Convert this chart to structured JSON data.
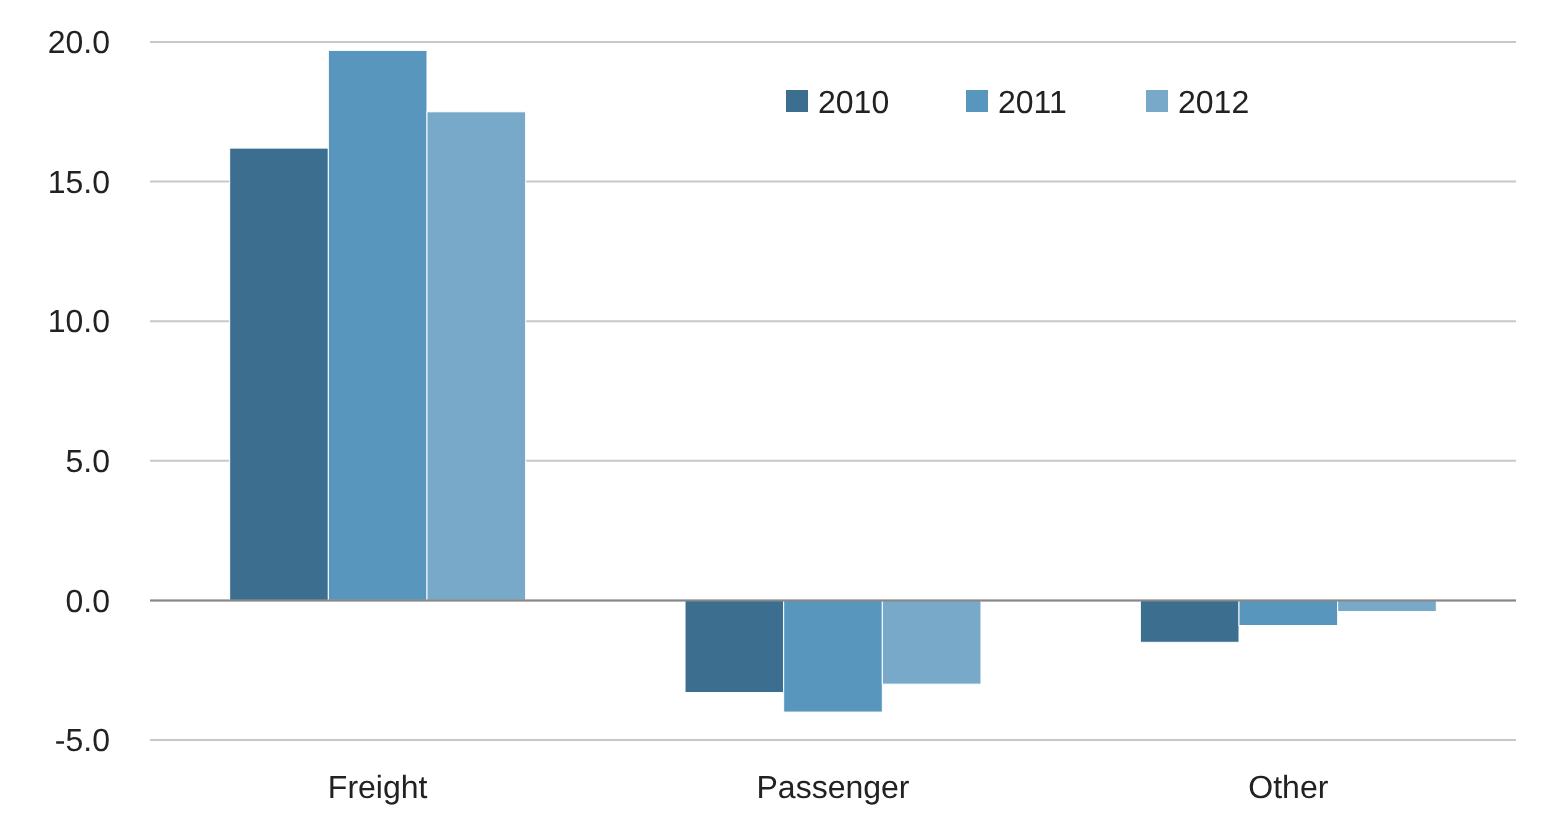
{
  "chart_data": {
    "type": "bar",
    "categories": [
      "Freight",
      "Passenger",
      "Other"
    ],
    "series": [
      {
        "name": "2010",
        "color": "#3b6e8f",
        "values": [
          16.2,
          -3.3,
          -1.5
        ]
      },
      {
        "name": "2011",
        "color": "#5996bd",
        "values": [
          19.7,
          -4.0,
          -0.9
        ]
      },
      {
        "name": "2012",
        "color": "#78a9c9",
        "values": [
          17.5,
          -3.0,
          -0.4
        ]
      }
    ],
    "ylim": [
      -5,
      20
    ],
    "yticks": [
      {
        "value": -5,
        "label": "-5.0"
      },
      {
        "value": 0,
        "label": "0.0"
      },
      {
        "value": 5,
        "label": "5.0"
      },
      {
        "value": 10,
        "label": "10.0"
      },
      {
        "value": 15,
        "label": "15.0"
      },
      {
        "value": 20,
        "label": "20.0"
      }
    ],
    "grid": "y",
    "legend": "top right"
  }
}
